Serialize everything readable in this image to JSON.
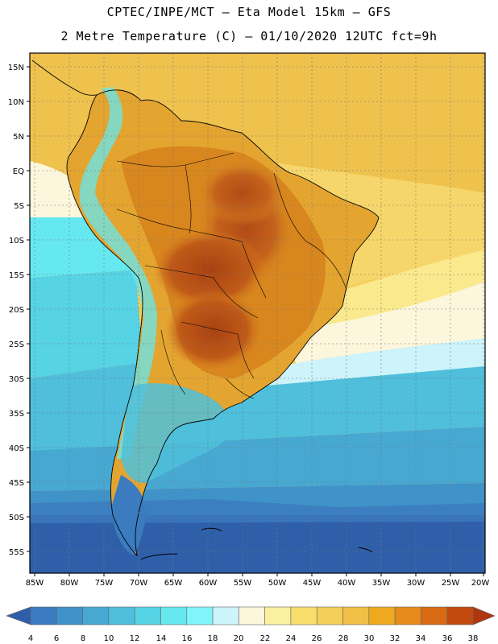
{
  "header": {
    "line1": "CPTEC/INPE/MCT –   Eta Model 15km – GFS",
    "line2": "2 Metre Temperature (C) – 01/10/2020 12UTC fct=9h"
  },
  "map": {
    "lat_labels": [
      "15N",
      "10N",
      "5N",
      "EQ",
      "5S",
      "10S",
      "15S",
      "20S",
      "25S",
      "30S",
      "35S",
      "40S",
      "45S",
      "50S",
      "55S"
    ],
    "lon_labels": [
      "85W",
      "80W",
      "75W",
      "70W",
      "65W",
      "60W",
      "55W",
      "50W",
      "45W",
      "40W",
      "35W",
      "30W",
      "25W",
      "20W"
    ]
  },
  "legend": {
    "labels": [
      "4",
      "6",
      "8",
      "10",
      "12",
      "14",
      "16",
      "18",
      "20",
      "22",
      "24",
      "26",
      "28",
      "30",
      "32",
      "34",
      "36",
      "38"
    ],
    "colors": [
      "#2f5fa8",
      "#3b7bbf",
      "#3f93c9",
      "#47a8d2",
      "#4fbfdb",
      "#56d3e4",
      "#66e8f0",
      "#7ff5fb",
      "#cdf3fb",
      "#fbf6dc",
      "#fbf0a0",
      "#f7de6c",
      "#f3cf5a",
      "#efbf46",
      "#eeaa1e",
      "#e68a1c",
      "#d86a14",
      "#c24a0e",
      "#b03610"
    ]
  }
}
